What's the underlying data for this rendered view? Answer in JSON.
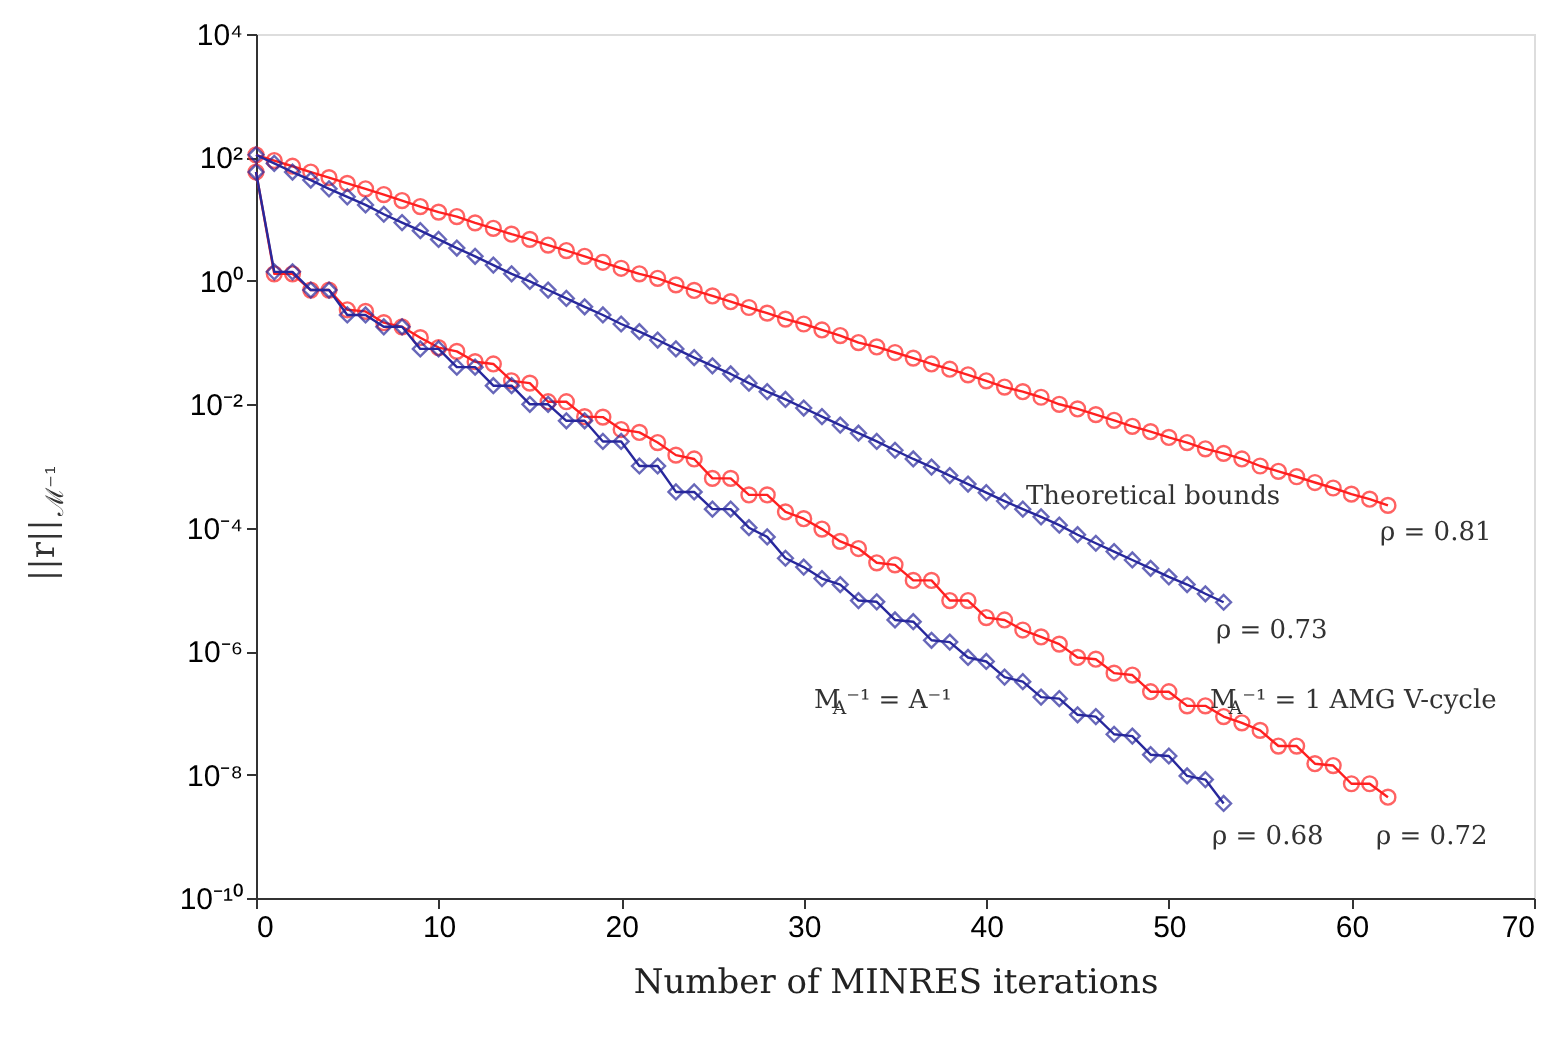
{
  "chart_data": {
    "type": "line",
    "xlabel": "Number of MINRES iterations",
    "ylabel": "||r||$_{ℳ⁻¹}$",
    "log": true,
    "grid": false,
    "xlim": [
      0,
      70
    ],
    "xticks": [
      0,
      10,
      20,
      30,
      40,
      50,
      60,
      70
    ],
    "ylim": [
      1e-10,
      10000.0
    ],
    "yticks": [
      {
        "value": 1e-10,
        "label": "10⁻¹⁰"
      },
      {
        "value": 1e-08,
        "label": "10⁻⁸"
      },
      {
        "value": 1e-06,
        "label": "10⁻⁶"
      },
      {
        "value": 0.0001,
        "label": "10⁻⁴"
      },
      {
        "value": 0.01,
        "label": "10⁻²"
      },
      {
        "value": 1,
        "label": "10⁰"
      },
      {
        "value": 100,
        "label": "10²"
      },
      {
        "value": 10000,
        "label": "10⁴"
      }
    ],
    "series": [
      {
        "color": "#ff2020",
        "marker": "circle",
        "x": [
          0,
          1,
          2,
          3,
          4,
          5,
          6,
          7,
          8,
          9,
          10,
          11,
          12,
          13,
          14,
          15,
          16,
          17,
          18,
          19,
          20,
          21,
          22,
          23,
          24,
          25,
          26,
          27,
          28,
          29,
          30,
          31,
          32,
          33,
          34,
          35,
          36,
          37,
          38,
          39,
          40,
          41,
          42,
          43,
          44,
          45,
          46,
          47,
          48,
          49,
          50,
          51,
          52,
          53,
          54,
          55,
          56,
          57,
          58,
          59,
          60,
          61,
          62
        ],
        "values": [
          110,
          89,
          72,
          58,
          47,
          38,
          31,
          25,
          20,
          16,
          13,
          11,
          8.7,
          7.1,
          5.7,
          4.7,
          3.8,
          3.1,
          2.5,
          2.0,
          1.6,
          1.3,
          1.1,
          0.86,
          0.7,
          0.57,
          0.46,
          0.37,
          0.3,
          0.24,
          0.2,
          0.16,
          0.13,
          0.1,
          0.085,
          0.069,
          0.056,
          0.045,
          0.037,
          0.03,
          0.024,
          0.019,
          0.016,
          0.013,
          0.01,
          0.0084,
          0.0068,
          0.0055,
          0.0044,
          0.0036,
          0.0029,
          0.0024,
          0.0019,
          0.0016,
          0.0013,
          0.001,
          0.00082,
          0.00067,
          0.00054,
          0.00044,
          0.00035,
          0.00029,
          0.00023
        ]
      },
      {
        "color": "#ff2020",
        "marker": "circle",
        "x": [
          0,
          1,
          2,
          3,
          4,
          5,
          6,
          7,
          8,
          9,
          10,
          11,
          12,
          13,
          14,
          15,
          16,
          17,
          18,
          19,
          20,
          21,
          22,
          23,
          24,
          25,
          26,
          27,
          28,
          29,
          30,
          31,
          32,
          33,
          34,
          35,
          36,
          37,
          38,
          39,
          40,
          41,
          42,
          43,
          44,
          45,
          46,
          47,
          48,
          49,
          50,
          51,
          52,
          53,
          54,
          55,
          56,
          57,
          58,
          59,
          60,
          61,
          62
        ],
        "values": [
          58,
          1.3,
          1.3,
          0.71,
          0.71,
          0.34,
          0.32,
          0.21,
          0.18,
          0.12,
          0.083,
          0.072,
          0.049,
          0.045,
          0.024,
          0.022,
          0.011,
          0.011,
          0.0063,
          0.0062,
          0.0039,
          0.0035,
          0.0024,
          0.0015,
          0.0013,
          0.00063,
          0.00063,
          0.00034,
          0.00034,
          0.00018,
          0.00014,
          9.5e-05,
          6e-05,
          4.6e-05,
          2.7e-05,
          2.5e-05,
          1.4e-05,
          1.4e-05,
          6.6e-06,
          6.6e-06,
          3.5e-06,
          3.2e-06,
          2.2e-06,
          1.7e-06,
          1.3e-06,
          7.9e-07,
          7.4e-07,
          4.4e-07,
          4.1e-07,
          2.2e-07,
          2.2e-07,
          1.3e-07,
          1.3e-07,
          8.7e-08,
          6.9e-08,
          5.2e-08,
          2.9e-08,
          2.9e-08,
          1.5e-08,
          1.4e-08,
          7.1e-09,
          7.1e-09,
          4.3e-09
        ]
      },
      {
        "color": "#28289c",
        "marker": "diamond",
        "x": [
          0,
          1,
          2,
          3,
          4,
          5,
          6,
          7,
          8,
          9,
          10,
          11,
          12,
          13,
          14,
          15,
          16,
          17,
          18,
          19,
          20,
          21,
          22,
          23,
          24,
          25,
          26,
          27,
          28,
          29,
          30,
          31,
          32,
          33,
          34,
          35,
          36,
          37,
          38,
          39,
          40,
          41,
          42,
          43,
          44,
          45,
          46,
          47,
          48,
          49,
          50,
          51,
          52,
          53
        ],
        "values": [
          110,
          80,
          58,
          43,
          31,
          23,
          17,
          12,
          8.8,
          6.5,
          4.7,
          3.4,
          2.5,
          1.8,
          1.3,
          0.98,
          0.71,
          0.52,
          0.38,
          0.28,
          0.2,
          0.15,
          0.11,
          0.079,
          0.057,
          0.042,
          0.031,
          0.022,
          0.016,
          0.012,
          0.0087,
          0.0063,
          0.0046,
          0.0034,
          0.0025,
          0.0018,
          0.0013,
          0.00096,
          0.0007,
          0.00051,
          0.00037,
          0.00027,
          0.0002,
          0.00015,
          0.00011,
          7.7e-05,
          5.6e-05,
          4.1e-05,
          3e-05,
          2.2e-05,
          1.6e-05,
          1.2e-05,
          8.5e-06,
          6.2e-06
        ]
      },
      {
        "color": "#28289c",
        "marker": "diamond",
        "x": [
          0,
          1,
          2,
          3,
          4,
          5,
          6,
          7,
          8,
          9,
          10,
          11,
          12,
          13,
          14,
          15,
          16,
          17,
          18,
          19,
          20,
          21,
          22,
          23,
          24,
          25,
          26,
          27,
          28,
          29,
          30,
          31,
          32,
          33,
          34,
          35,
          36,
          37,
          38,
          39,
          40,
          41,
          42,
          43,
          44,
          45,
          46,
          47,
          48,
          49,
          50,
          51,
          52,
          53
        ],
        "values": [
          58,
          1.4,
          1.4,
          0.71,
          0.71,
          0.28,
          0.28,
          0.18,
          0.18,
          0.079,
          0.079,
          0.04,
          0.04,
          0.02,
          0.02,
          0.01,
          0.01,
          0.0054,
          0.0054,
          0.0025,
          0.0025,
          0.001,
          0.001,
          0.00038,
          0.00038,
          0.0002,
          0.0002,
          0.0001,
          7.1e-05,
          3.2e-05,
          2.3e-05,
          1.5e-05,
          1.2e-05,
          6.6e-06,
          6.3e-06,
          3.2e-06,
          3e-06,
          1.5e-06,
          1.4e-06,
          7.9e-07,
          6.8e-07,
          3.8e-07,
          3.2e-07,
          1.8e-07,
          1.7e-07,
          9.3e-08,
          8.7e-08,
          4.5e-08,
          4.2e-08,
          2.1e-08,
          2e-08,
          9.5e-09,
          8.3e-09,
          3.4e-09
        ]
      }
    ],
    "annotations": [
      "Theoretical bounds",
      "ρ = 0.81",
      "ρ = 0.73",
      "M$_{A}$⁻¹ = 1 AMG V-cycle",
      "M$_{A}$⁻¹ = A⁻¹",
      "ρ = 0.68",
      "ρ = 0.72"
    ]
  }
}
